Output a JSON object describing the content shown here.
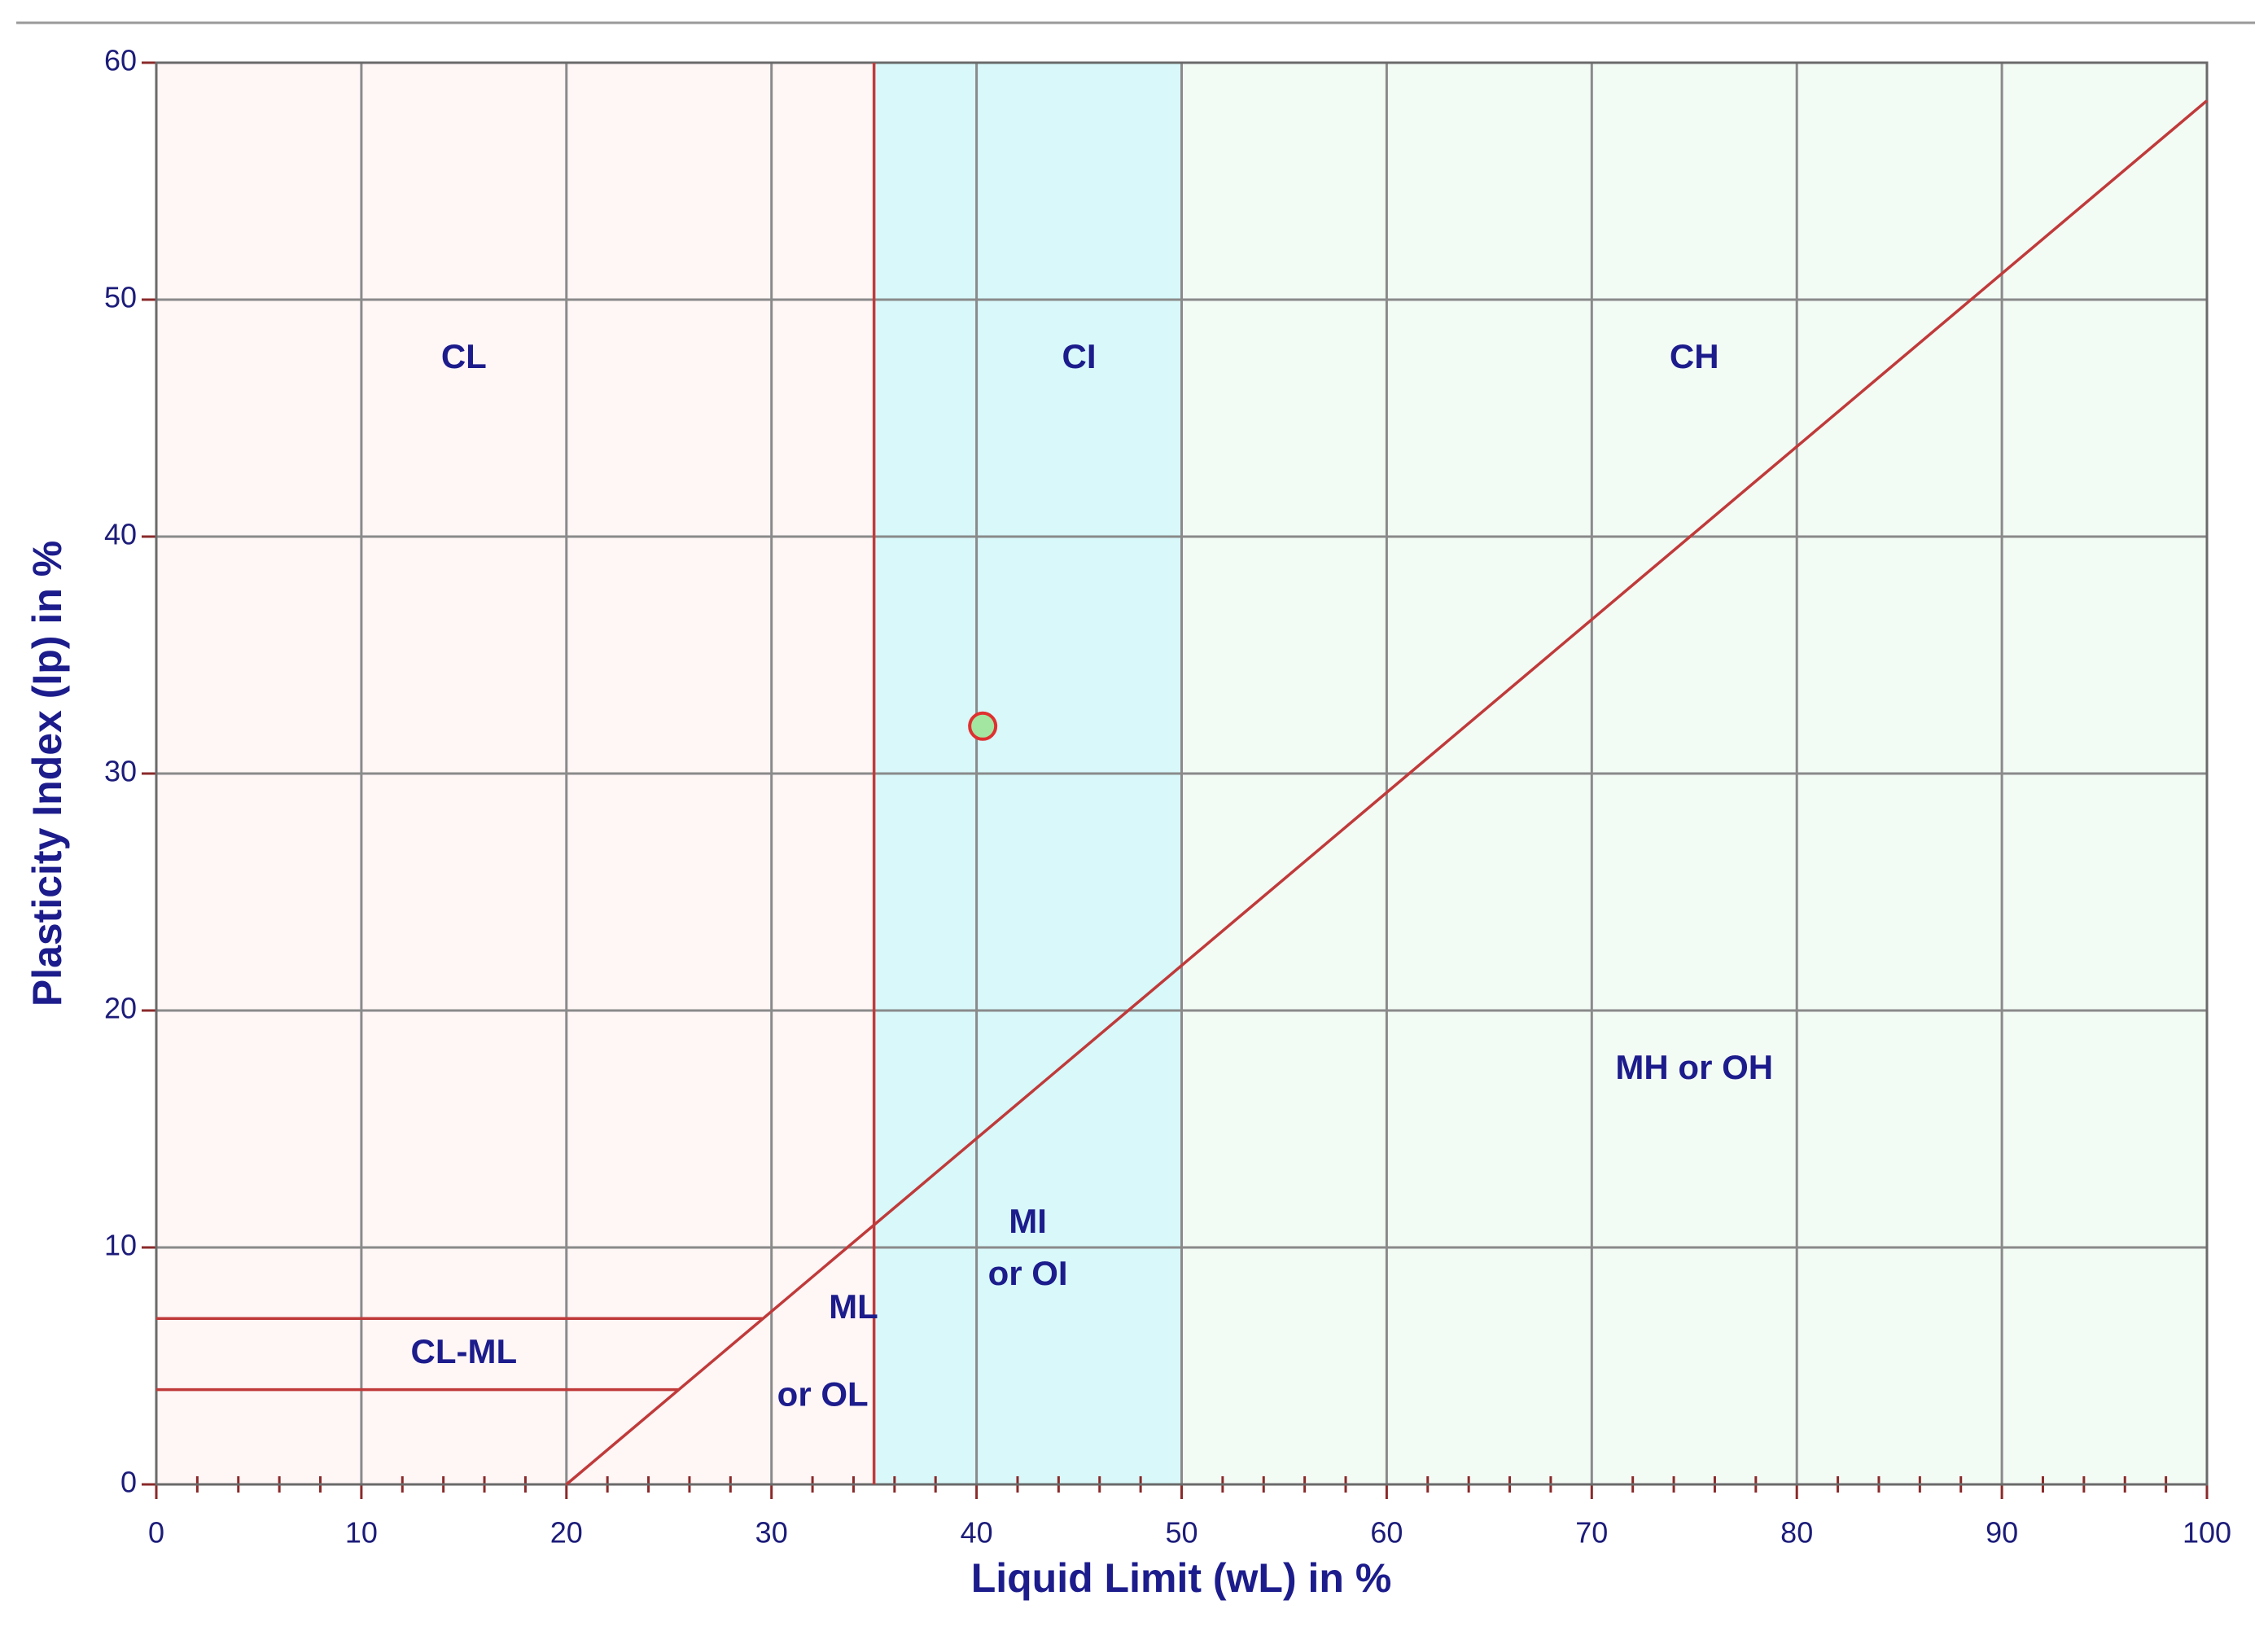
{
  "chart_data": {
    "type": "scatter",
    "x_label": "Liquid Limit (wL) in %",
    "y_label": "Plasticity Index (Ip) in %",
    "xlim": [
      0,
      100
    ],
    "ylim": [
      0,
      60
    ],
    "xticks": [
      0,
      10,
      20,
      30,
      40,
      50,
      60,
      70,
      80,
      90,
      100
    ],
    "yticks": [
      0,
      10,
      20,
      30,
      40,
      50,
      60
    ],
    "xminorticks": [
      2,
      4,
      6,
      8,
      12,
      14,
      16,
      18,
      22,
      24,
      26,
      28,
      32,
      34,
      36,
      38,
      42,
      44,
      46,
      48,
      52,
      54,
      56,
      58,
      62,
      64,
      66,
      68,
      72,
      74,
      76,
      78,
      82,
      84,
      86,
      88,
      92,
      94,
      96,
      98
    ],
    "grid": true,
    "zones": [
      {
        "x": [
          0,
          35
        ],
        "color": "#fff6f6"
      },
      {
        "x": [
          35,
          50
        ],
        "color": "#d8f8fa"
      },
      {
        "x": [
          50,
          100
        ],
        "color": "#f3fbf5"
      }
    ],
    "series": [
      {
        "style": "line",
        "color": "#c03a3a",
        "x": [
          20,
          100
        ],
        "values": [
          0,
          58.4
        ]
      },
      {
        "style": "line",
        "color": "#c03a3a",
        "x": [
          35,
          35
        ],
        "values": [
          0,
          60
        ]
      },
      {
        "style": "line",
        "color": "#c03a3a",
        "x": [
          0,
          29.6
        ],
        "values": [
          7,
          7
        ]
      },
      {
        "style": "line",
        "color": "#c03a3a",
        "x": [
          0,
          25.5
        ],
        "values": [
          4,
          4
        ]
      },
      {
        "style": "marker",
        "color": "#a2e6a2",
        "edge_color": "#e03030",
        "x": [
          40.3
        ],
        "values": [
          32
        ]
      }
    ],
    "annotations": [
      "CL",
      "CI",
      "CH",
      "MH or OH",
      "MI",
      "or OI",
      "ML",
      "or OL",
      "CL-ML"
    ]
  }
}
